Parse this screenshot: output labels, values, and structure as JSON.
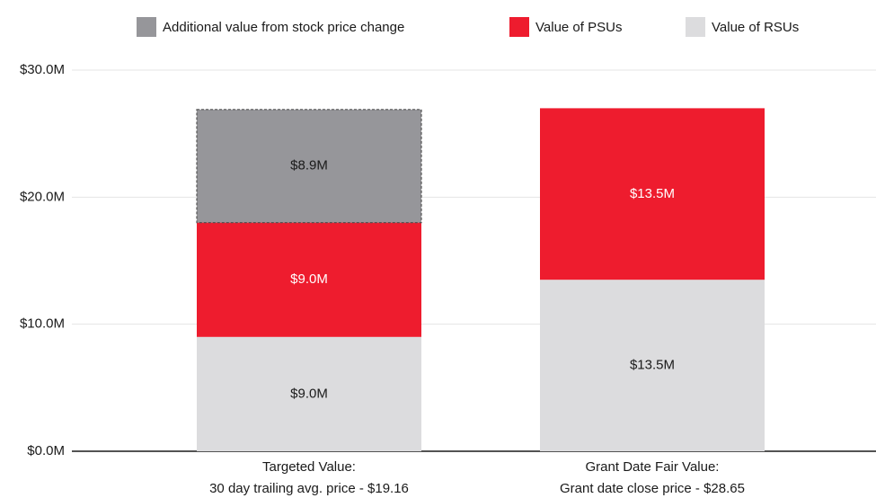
{
  "chart_data": {
    "type": "stacked_bar",
    "categories": [
      [
        "Targeted Value:",
        "30 day trailing avg. price - $19.16"
      ],
      [
        "Grant Date Fair Value:",
        "Grant date close price - $28.65"
      ]
    ],
    "series": [
      {
        "name": "Additional value from stock price change",
        "color": "#96969a",
        "dashed": true,
        "label_color": "#1a1a1a",
        "values": [
          8.9,
          null
        ],
        "value_labels": [
          "$8.9M",
          null
        ]
      },
      {
        "name": "Value of PSUs",
        "color": "#ee1c2e",
        "label_color": "#ffffff",
        "values": [
          9.0,
          13.5
        ],
        "value_labels": [
          "$9.0M",
          "$13.5M"
        ]
      },
      {
        "name": "Value of RSUs",
        "color": "#dcdcde",
        "label_color": "#1a1a1a",
        "values": [
          9.0,
          13.5
        ],
        "value_labels": [
          "$9.0M",
          "$13.5M"
        ]
      }
    ],
    "ylim": [
      0,
      30
    ],
    "yticks": [
      {
        "value": 0,
        "label": "$0.0M"
      },
      {
        "value": 10,
        "label": "$10.0M"
      },
      {
        "value": 20,
        "label": "$20.0M"
      },
      {
        "value": 30,
        "label": "$30.0M"
      }
    ],
    "grid": true,
    "legend": "top"
  }
}
